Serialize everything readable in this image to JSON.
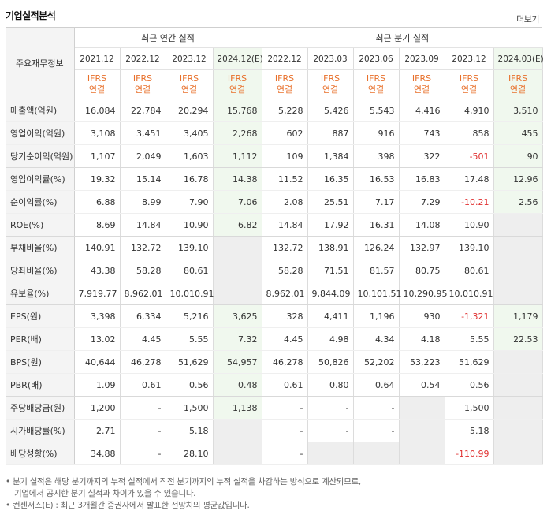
{
  "title": "기업실적분석",
  "more": "더보기",
  "header": {
    "row_label": "주요재무정보",
    "annual_group": "최근 연간 실적",
    "quarter_group": "최근 분기 실적",
    "annual_periods": [
      "2021.12",
      "2022.12",
      "2023.12",
      "2024.12(E)"
    ],
    "quarter_periods": [
      "2022.12",
      "2023.03",
      "2023.06",
      "2023.09",
      "2023.12",
      "2024.03(E)"
    ],
    "ifrs_top": "IFRS",
    "ifrs_bottom": "연결"
  },
  "rows": [
    {
      "label": "매출액(억원)",
      "annual": [
        "16,084",
        "22,784",
        "20,294",
        "15,768"
      ],
      "quarter": [
        "5,228",
        "5,426",
        "5,543",
        "4,416",
        "4,910",
        "3,510"
      ]
    },
    {
      "label": "영업이익(억원)",
      "annual": [
        "3,108",
        "3,451",
        "3,405",
        "2,268"
      ],
      "quarter": [
        "602",
        "887",
        "916",
        "743",
        "858",
        "455"
      ]
    },
    {
      "label": "당기순이익(억원)",
      "annual": [
        "1,107",
        "2,049",
        "1,603",
        "1,112"
      ],
      "quarter": [
        "109",
        "1,384",
        "398",
        "322",
        "-501",
        "90"
      ]
    },
    {
      "label": "영업이익률(%)",
      "annual": [
        "19.32",
        "15.14",
        "16.78",
        "14.38"
      ],
      "quarter": [
        "11.52",
        "16.35",
        "16.53",
        "16.83",
        "17.48",
        "12.96"
      ]
    },
    {
      "label": "순이익률(%)",
      "annual": [
        "6.88",
        "8.99",
        "7.90",
        "7.06"
      ],
      "quarter": [
        "2.08",
        "25.51",
        "7.17",
        "7.29",
        "-10.21",
        "2.56"
      ]
    },
    {
      "label": "ROE(%)",
      "annual": [
        "8.69",
        "14.84",
        "10.90",
        "6.82"
      ],
      "quarter": [
        "14.84",
        "17.92",
        "16.31",
        "14.08",
        "10.90",
        ""
      ]
    },
    {
      "label": "부채비율(%)",
      "annual": [
        "140.91",
        "132.72",
        "139.10",
        ""
      ],
      "quarter": [
        "132.72",
        "138.91",
        "126.24",
        "132.97",
        "139.10",
        ""
      ]
    },
    {
      "label": "당좌비율(%)",
      "annual": [
        "43.38",
        "58.28",
        "80.61",
        ""
      ],
      "quarter": [
        "58.28",
        "71.51",
        "81.57",
        "80.75",
        "80.61",
        ""
      ]
    },
    {
      "label": "유보율(%)",
      "annual": [
        "7,919.77",
        "8,962.01",
        "10,010.91",
        ""
      ],
      "quarter": [
        "8,962.01",
        "9,844.09",
        "10,101.51",
        "10,290.95",
        "10,010.91",
        ""
      ]
    },
    {
      "label": "EPS(원)",
      "annual": [
        "3,398",
        "6,334",
        "5,216",
        "3,625"
      ],
      "quarter": [
        "328",
        "4,411",
        "1,196",
        "930",
        "-1,321",
        "1,179"
      ]
    },
    {
      "label": "PER(배)",
      "annual": [
        "13.02",
        "4.45",
        "5.55",
        "7.32"
      ],
      "quarter": [
        "4.45",
        "4.98",
        "4.34",
        "4.18",
        "5.55",
        "22.53"
      ]
    },
    {
      "label": "BPS(원)",
      "annual": [
        "40,644",
        "46,278",
        "51,629",
        "54,957"
      ],
      "quarter": [
        "46,278",
        "50,826",
        "52,202",
        "53,223",
        "51,629",
        ""
      ]
    },
    {
      "label": "PBR(배)",
      "annual": [
        "1.09",
        "0.61",
        "0.56",
        "0.48"
      ],
      "quarter": [
        "0.61",
        "0.80",
        "0.64",
        "0.54",
        "0.56",
        ""
      ]
    },
    {
      "label": "주당배당금(원)",
      "annual": [
        "1,200",
        "-",
        "1,500",
        "1,138"
      ],
      "quarter": [
        "-",
        "-",
        "-",
        "",
        "1,500",
        ""
      ]
    },
    {
      "label": "시가배당률(%)",
      "annual": [
        "2.71",
        "-",
        "5.18",
        ""
      ],
      "quarter": [
        "-",
        "-",
        "-",
        "",
        "5.18",
        ""
      ]
    },
    {
      "label": "배당성향(%)",
      "annual": [
        "34.88",
        "-",
        "28.10",
        ""
      ],
      "quarter": [
        "-",
        "",
        "",
        "",
        "-110.99",
        ""
      ]
    }
  ],
  "notes": [
    "분기 실적은 해당 분기까지의 누적 실적에서 직전 분기까지의 누적 실적을 차감하는 방식으로 계산되므로,",
    "기업에서 공시한 분기 실적과 차이가 있을 수 있습니다.",
    "컨센서스(E) : 최근 3개월간 증권사에서 발표한 전망치의 평균값입니다."
  ],
  "colors": {
    "estimate_bg": "#f0f8ee",
    "negative": "#e03030",
    "ifrs": "#e8702b",
    "label_bg": "#f4f4f4",
    "empty_bg": "#eeeeee"
  }
}
